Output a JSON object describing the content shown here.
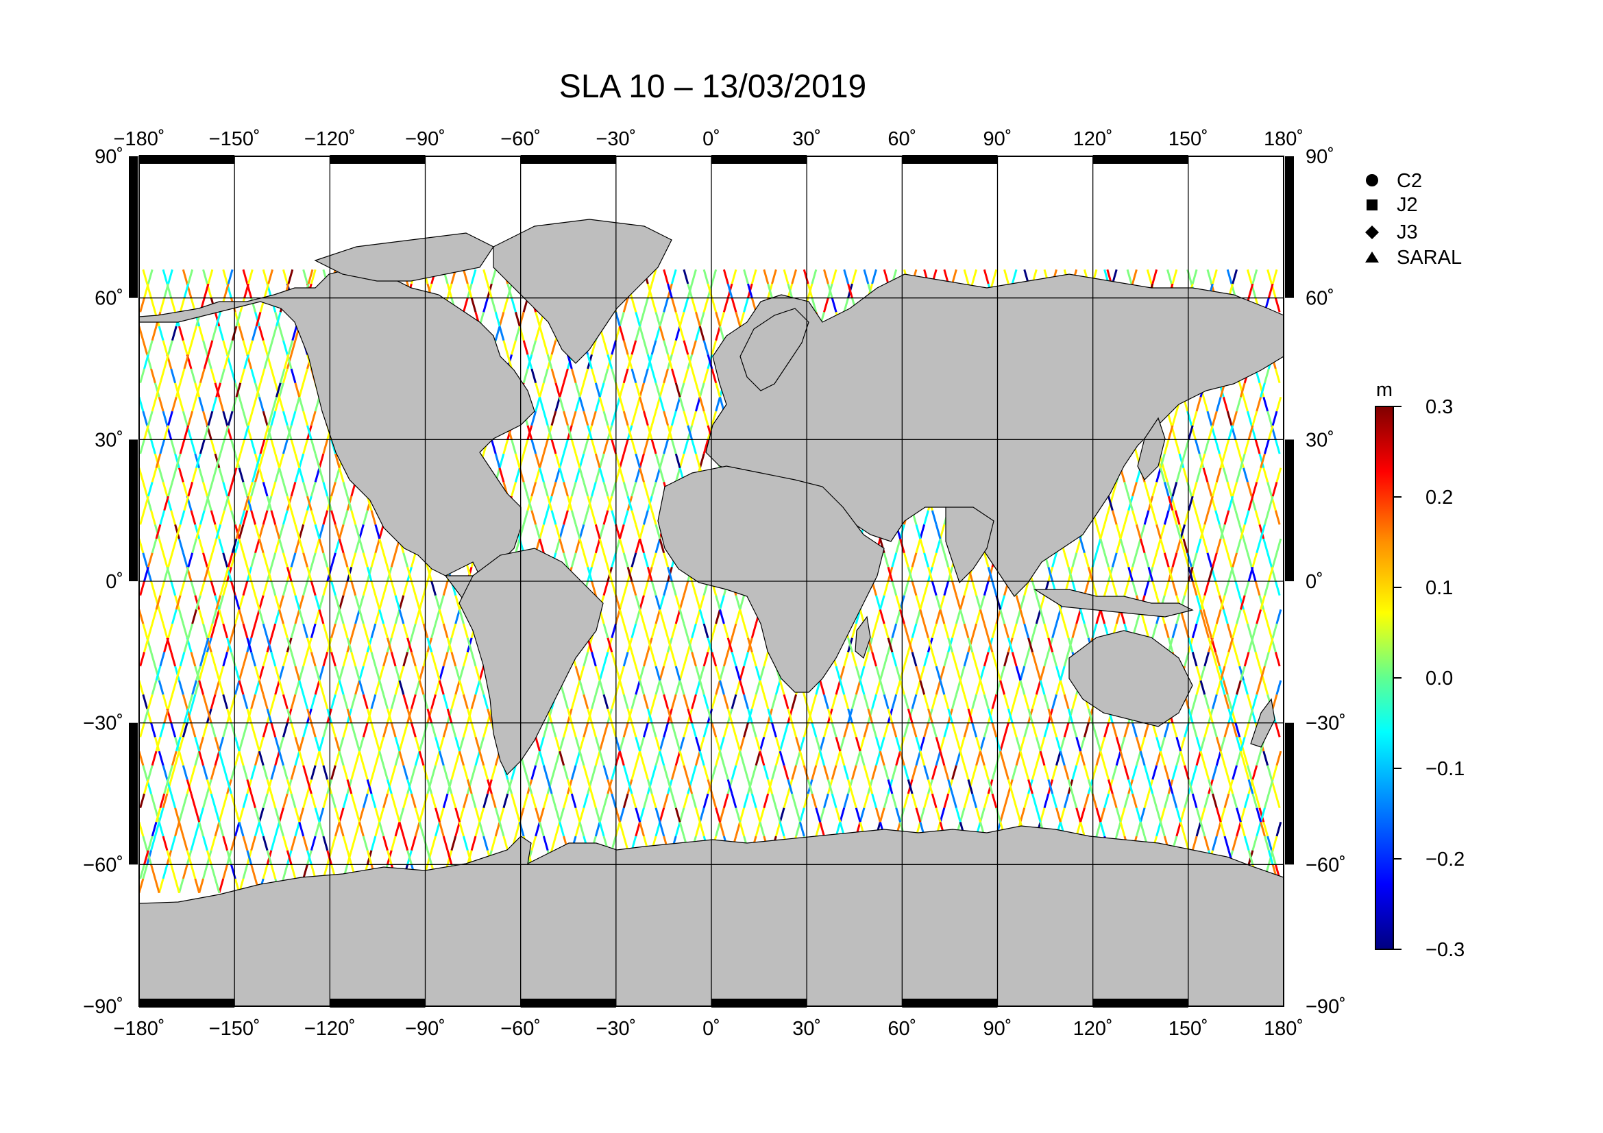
{
  "title": "SLA 10 – 13/03/2019",
  "map": {
    "projection": "equirectangular",
    "lon_range": [
      -180,
      180
    ],
    "lat_range": [
      -90,
      90
    ],
    "grid_step_lon": 30,
    "grid_step_lat": 30,
    "land_color": "#bebebe",
    "ocean_color": "#ffffff",
    "frame_color": "#000000"
  },
  "lon_ticks": [
    "−180˚",
    "−150˚",
    "−120˚",
    "−90˚",
    "−60˚",
    "−30˚",
    "0˚",
    "30˚",
    "60˚",
    "90˚",
    "120˚",
    "150˚",
    "180˚"
  ],
  "lat_ticks": [
    "90˚",
    "60˚",
    "30˚",
    "0˚",
    "−30˚",
    "−60˚",
    "−90˚"
  ],
  "legend": {
    "items": [
      {
        "label": "C2",
        "marker": "circle"
      },
      {
        "label": "J2",
        "marker": "square"
      },
      {
        "label": "J3",
        "marker": "diamond"
      },
      {
        "label": "SARAL",
        "marker": "triangle"
      }
    ]
  },
  "colorbar": {
    "unit": "m",
    "min": -0.3,
    "max": 0.3,
    "tick_labels": [
      "0.3",
      "0.2",
      "0.1",
      "0.0",
      "−0.1",
      "−0.2",
      "−0.3"
    ],
    "colors": [
      "#000080",
      "#0000ff",
      "#0080ff",
      "#00ffff",
      "#80ff80",
      "#ffff00",
      "#ff8000",
      "#ff0000",
      "#800000"
    ]
  },
  "chart_data": {
    "type": "scatter",
    "title": "SLA 10 – 13/03/2019",
    "x_range": [
      -180,
      180
    ],
    "y_range": [
      -90,
      90
    ],
    "value_unit": "m",
    "value_range": [
      -0.3,
      0.3
    ],
    "series": [
      {
        "name": "C2",
        "marker": "circle"
      },
      {
        "name": "J2",
        "marker": "square"
      },
      {
        "name": "J3",
        "marker": "diamond"
      },
      {
        "name": "SARAL",
        "marker": "triangle"
      }
    ]
  }
}
